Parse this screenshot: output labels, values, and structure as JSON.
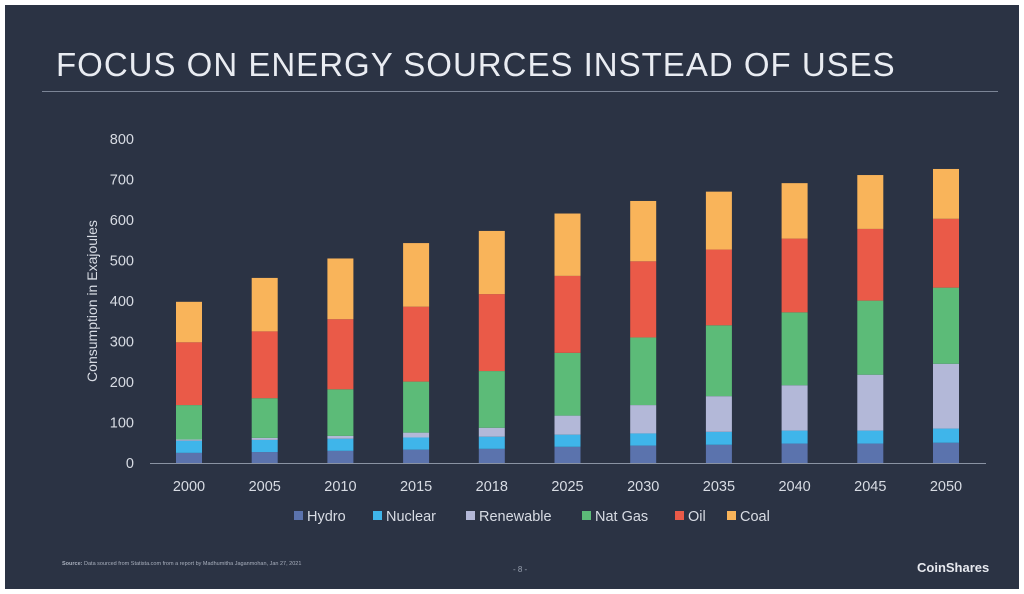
{
  "slide": {
    "title": "FOCUS ON ENERGY SOURCES INSTEAD OF USES",
    "source_label": "Source:",
    "source_text": "Data sourced from Statista.com from a report by Madhumitha Jaganmohan, Jan 27, 2021",
    "page_number": "- 8 -",
    "brand": "CoinShares"
  },
  "colors": {
    "background": "#2b3344",
    "Hydro": "#5b73ad",
    "Nuclear": "#3fb5ea",
    "Renewable": "#b3b8d8",
    "Nat Gas": "#5cbb78",
    "Oil": "#ea5a48",
    "Coal": "#f9b45a"
  },
  "chart_data": {
    "type": "bar",
    "stacked": true,
    "categories": [
      "2000",
      "2005",
      "2010",
      "2015",
      "2018",
      "2025",
      "2030",
      "2035",
      "2040",
      "2045",
      "2050"
    ],
    "series": [
      {
        "name": "Hydro",
        "values": [
          25,
          27,
          30,
          33,
          35,
          40,
          43,
          45,
          48,
          48,
          50
        ]
      },
      {
        "name": "Nuclear",
        "values": [
          30,
          30,
          30,
          30,
          30,
          30,
          30,
          32,
          32,
          32,
          35
        ]
      },
      {
        "name": "Renewable",
        "values": [
          3,
          5,
          7,
          12,
          22,
          47,
          70,
          88,
          112,
          138,
          160
        ]
      },
      {
        "name": "Nat Gas",
        "values": [
          85,
          98,
          115,
          126,
          140,
          155,
          167,
          175,
          180,
          183,
          188
        ]
      },
      {
        "name": "Oil",
        "values": [
          155,
          165,
          173,
          185,
          190,
          190,
          188,
          187,
          182,
          177,
          170
        ]
      },
      {
        "name": "Coal",
        "values": [
          100,
          132,
          150,
          157,
          156,
          154,
          149,
          143,
          137,
          133,
          123
        ]
      }
    ],
    "ylabel": "Consumption in Exajoules",
    "xlabel": "",
    "ylim": [
      0,
      800
    ],
    "yticks": [
      0,
      100,
      200,
      300,
      400,
      500,
      600,
      700,
      800
    ],
    "grid": false,
    "legend_position": "bottom"
  }
}
